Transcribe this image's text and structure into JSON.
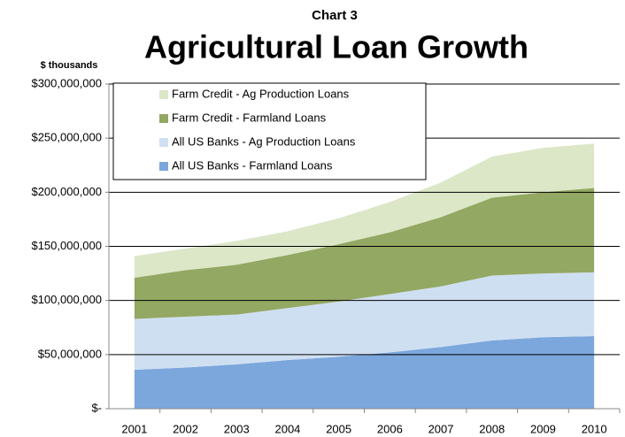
{
  "chart_data": {
    "type": "stacked_area",
    "supertitle": "Chart 3",
    "title": "Agricultural Loan Growth",
    "y_label": "$ thousands",
    "categories": [
      "2001",
      "2002",
      "2003",
      "2004",
      "2005",
      "2006",
      "2007",
      "2008",
      "2009",
      "2010"
    ],
    "series": [
      {
        "name": "All US Banks - Farmland Loans",
        "color": "#7ba7dc",
        "values": [
          36000000,
          38000000,
          41000000,
          45000000,
          48000000,
          52000000,
          57000000,
          63000000,
          66000000,
          67000000
        ]
      },
      {
        "name": "All US Banks - Ag Production Loans",
        "color": "#cfdff2",
        "values": [
          47000000,
          47000000,
          46000000,
          48000000,
          51000000,
          54000000,
          56000000,
          60000000,
          59000000,
          59000000
        ]
      },
      {
        "name": "Farm Credit - Farmland Loans",
        "color": "#93a862",
        "values": [
          38000000,
          43000000,
          46000000,
          49000000,
          53000000,
          57000000,
          64000000,
          72000000,
          75000000,
          78000000
        ]
      },
      {
        "name": "Farm Credit - Ag Production Loans",
        "color": "#dce7c8",
        "values": [
          20000000,
          20000000,
          22000000,
          22000000,
          24000000,
          28000000,
          32000000,
          38000000,
          41000000,
          41000000
        ]
      }
    ],
    "ylim": [
      0,
      300000000
    ],
    "yticks": [
      {
        "value": 0,
        "label": "$-"
      },
      {
        "value": 50000000,
        "label": "$50,000,000"
      },
      {
        "value": 100000000,
        "label": "$100,000,000"
      },
      {
        "value": 150000000,
        "label": "$150,000,000"
      },
      {
        "value": 200000000,
        "label": "$200,000,000"
      },
      {
        "value": 250000000,
        "label": "$250,000,000"
      },
      {
        "value": 300000000,
        "label": "$300,000,000"
      }
    ],
    "grid": true,
    "legend": "top-left"
  }
}
